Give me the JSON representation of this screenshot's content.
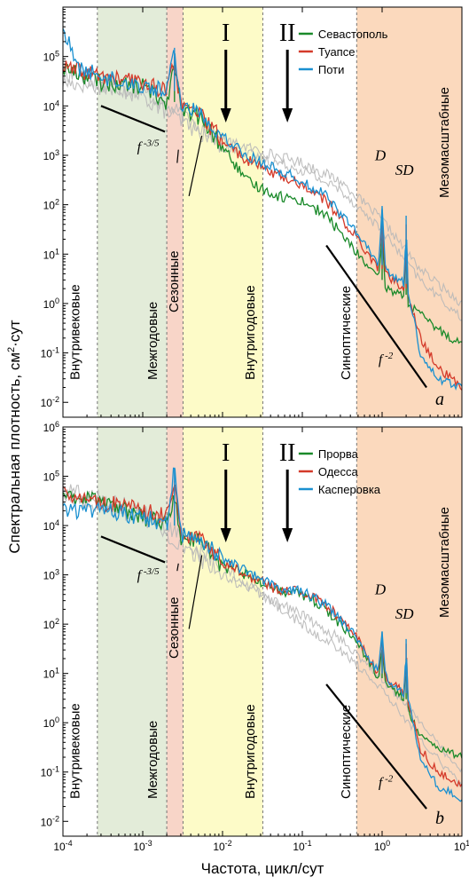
{
  "figure": {
    "ylabel_prefix": "Спектральная плотность, см",
    "ylabel_sup": "2",
    "ylabel_suffix": "·сут",
    "xlabel": "Частота, цикл/сут",
    "x_tick_labels": [
      {
        "base": "10",
        "exp": "-4"
      },
      {
        "base": "10",
        "exp": "-3"
      },
      {
        "base": "10",
        "exp": "-2"
      },
      {
        "base": "10",
        "exp": "-1"
      },
      {
        "base": "10",
        "exp": "0"
      },
      {
        "base": "10",
        "exp": "1"
      }
    ],
    "y_tick_labels_a": [
      {
        "base": "10",
        "exp": "-2"
      },
      {
        "base": "10",
        "exp": "-1"
      },
      {
        "base": "10",
        "exp": "0"
      },
      {
        "base": "10",
        "exp": "1"
      },
      {
        "base": "10",
        "exp": "2"
      },
      {
        "base": "10",
        "exp": "3"
      },
      {
        "base": "10",
        "exp": "4"
      },
      {
        "base": "10",
        "exp": "5"
      }
    ],
    "y_tick_labels_b": [
      {
        "base": "10",
        "exp": "-2"
      },
      {
        "base": "10",
        "exp": "-1"
      },
      {
        "base": "10",
        "exp": "0"
      },
      {
        "base": "10",
        "exp": "1"
      },
      {
        "base": "10",
        "exp": "2"
      },
      {
        "base": "10",
        "exp": "3"
      },
      {
        "base": "10",
        "exp": "4"
      },
      {
        "base": "10",
        "exp": "5"
      },
      {
        "base": "10",
        "exp": "6"
      }
    ],
    "bands": {
      "intracentury": "Внутривековые",
      "interannual": "Межгодовые",
      "seasonal": "Сезонные",
      "intraannual": "Внутригодовые",
      "synoptic": "Синоптические",
      "mesoscale": "Мезомасштабные"
    },
    "arrow_I": "I",
    "arrow_II": "II",
    "slope_label_1": {
      "base": "f",
      "exp": " -3/5"
    },
    "slope_label_2": {
      "base": "f",
      "exp": " -2"
    },
    "peak_D": "D",
    "peak_SD": "SD",
    "colors": {
      "green": "#1a8a2a",
      "red": "#d43a2a",
      "blue": "#1a90d0",
      "gray": "#b8b8b8",
      "band_intracentury_green": "#e3ecd9",
      "band_seasonal": "#f8d5c8",
      "band_intraannual": "#fdfbc8",
      "band_mesoscale": "#fbd9bd"
    }
  },
  "chart_data": [
    {
      "type": "line",
      "panel_label": "a",
      "x_scale": "log",
      "y_scale": "log",
      "xlim": [
        0.0001,
        10
      ],
      "ylim": [
        0.005,
        1000000
      ],
      "legend_position": "top-right",
      "series": [
        {
          "name": "Севастополь",
          "color": "#1a8a2a",
          "x": [
            0.0001,
            0.0003,
            0.001,
            0.002,
            0.0025,
            0.003,
            0.005,
            0.01,
            0.02,
            0.05,
            0.1,
            0.2,
            0.5,
            0.9,
            1.0,
            1.1,
            1.9,
            2.0,
            2.1,
            3,
            5,
            10
          ],
          "y": [
            60000,
            30000,
            25000,
            12000,
            80000,
            8000,
            6000,
            1500,
            300,
            150,
            120,
            60,
            10,
            3,
            20,
            2,
            1.5,
            20,
            1,
            0.6,
            0.3,
            0.15
          ]
        },
        {
          "name": "Туапсе",
          "color": "#d43a2a",
          "x": [
            0.0001,
            0.0003,
            0.001,
            0.002,
            0.0025,
            0.003,
            0.005,
            0.01,
            0.02,
            0.05,
            0.1,
            0.2,
            0.5,
            0.9,
            1.0,
            1.1,
            1.9,
            2.0,
            2.1,
            3,
            5,
            10
          ],
          "y": [
            60000,
            40000,
            30000,
            20000,
            100000,
            9000,
            7000,
            2000,
            800,
            400,
            250,
            120,
            20,
            5,
            50,
            4,
            2,
            40,
            1.5,
            0.2,
            0.05,
            0.02
          ]
        },
        {
          "name": "Поти",
          "color": "#1a90d0",
          "x": [
            0.0001,
            0.00015,
            0.0003,
            0.001,
            0.002,
            0.0025,
            0.003,
            0.005,
            0.01,
            0.02,
            0.05,
            0.1,
            0.2,
            0.5,
            0.9,
            1.0,
            1.1,
            1.9,
            2.0,
            2.1,
            3,
            5,
            10
          ],
          "y": [
            400000,
            60000,
            40000,
            25000,
            20000,
            150000,
            10000,
            8000,
            2500,
            1000,
            500,
            300,
            150,
            25,
            6,
            80,
            5,
            2.5,
            60,
            2,
            0.1,
            0.03,
            0.02
          ]
        },
        {
          "name": "",
          "color": "#b8b8b8",
          "x": [
            0.0001,
            0.001,
            0.01,
            0.1,
            0.3,
            1,
            3,
            10
          ],
          "y": [
            30000,
            20000,
            2000,
            700,
            300,
            50,
            5,
            1
          ]
        },
        {
          "name": "",
          "color": "#b8b8b8",
          "x": [
            0.0001,
            0.001,
            0.01,
            0.1,
            0.3,
            1,
            3,
            10
          ],
          "y": [
            50000,
            15000,
            1500,
            500,
            200,
            30,
            3,
            0.5
          ]
        }
      ]
    },
    {
      "type": "line",
      "panel_label": "b",
      "x_scale": "log",
      "y_scale": "log",
      "xlim": [
        0.0001,
        10
      ],
      "ylim": [
        0.005,
        1000000
      ],
      "legend_position": "top-right",
      "series": [
        {
          "name": "Прорва",
          "color": "#1a8a2a",
          "x": [
            0.0001,
            0.0003,
            0.001,
            0.002,
            0.0025,
            0.003,
            0.005,
            0.01,
            0.02,
            0.05,
            0.1,
            0.2,
            0.5,
            0.9,
            1.0,
            1.1,
            1.9,
            2.0,
            2.1,
            3,
            5,
            10
          ],
          "y": [
            40000,
            30000,
            15000,
            10000,
            40000,
            5000,
            5000,
            1500,
            1000,
            500,
            400,
            200,
            40,
            8,
            30,
            6,
            3,
            20,
            2,
            0.5,
            0.3,
            0.2
          ]
        },
        {
          "name": "Одесса",
          "color": "#d43a2a",
          "x": [
            0.0001,
            0.0003,
            0.001,
            0.002,
            0.0025,
            0.003,
            0.005,
            0.01,
            0.02,
            0.05,
            0.1,
            0.2,
            0.5,
            0.9,
            1.0,
            1.1,
            1.9,
            2.0,
            2.1,
            3,
            5,
            10
          ],
          "y": [
            50000,
            30000,
            20000,
            15000,
            80000,
            6000,
            6000,
            1800,
            1000,
            500,
            450,
            250,
            50,
            10,
            60,
            8,
            4,
            40,
            3,
            0.3,
            0.1,
            0.05
          ]
        },
        {
          "name": "Касперовка",
          "color": "#1a90d0",
          "x": [
            0.0001,
            0.0003,
            0.001,
            0.002,
            0.0025,
            0.003,
            0.005,
            0.01,
            0.02,
            0.05,
            0.1,
            0.2,
            0.5,
            0.9,
            1.0,
            1.1,
            1.9,
            2.0,
            2.1,
            3,
            5,
            10
          ],
          "y": [
            20000,
            20000,
            15000,
            10000,
            150000,
            6000,
            6000,
            2000,
            1200,
            500,
            450,
            250,
            50,
            10,
            70,
            8,
            4,
            50,
            3,
            0.2,
            0.05,
            0.03
          ]
        },
        {
          "name": "",
          "color": "#b8b8b8",
          "x": [
            0.0001,
            0.001,
            0.01,
            0.1,
            0.3,
            1,
            3,
            10
          ],
          "y": [
            60000,
            20000,
            1500,
            100,
            30,
            5,
            0.5,
            0.05
          ]
        },
        {
          "name": "",
          "color": "#b8b8b8",
          "x": [
            0.0001,
            0.001,
            0.01,
            0.1,
            0.3,
            1,
            3,
            10
          ],
          "y": [
            40000,
            15000,
            1000,
            150,
            50,
            8,
            1,
            0.1
          ]
        }
      ]
    }
  ]
}
